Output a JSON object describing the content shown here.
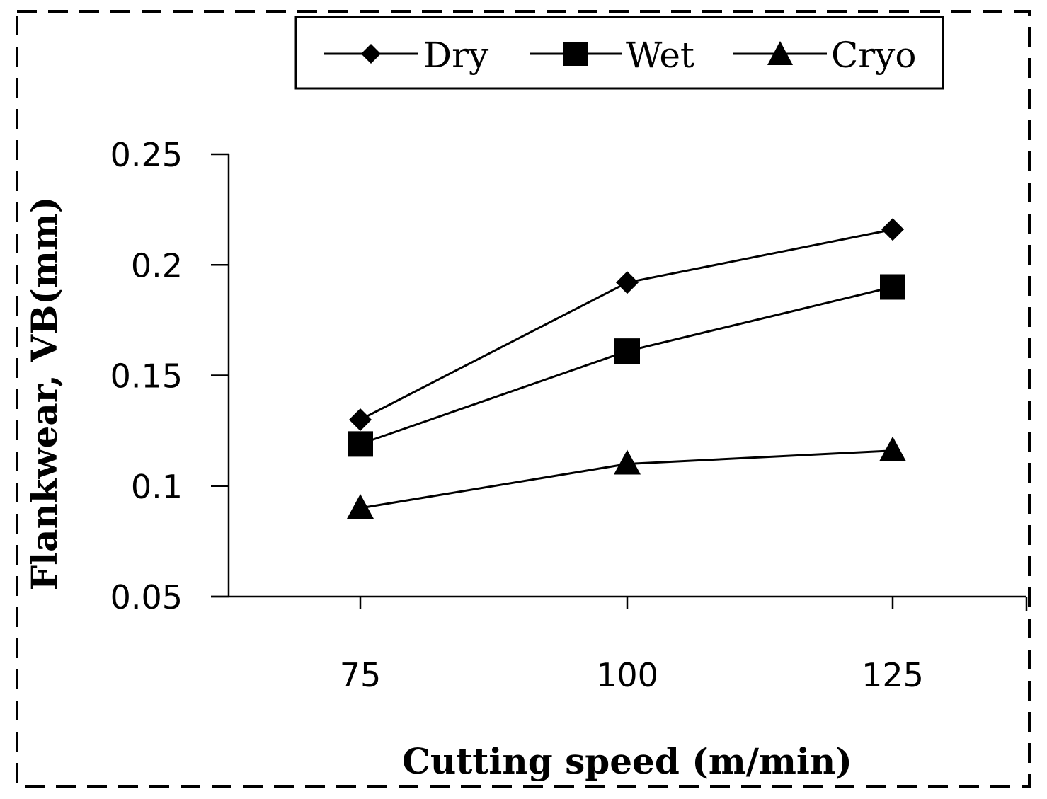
{
  "chart_data": {
    "type": "line",
    "title": "",
    "xlabel": "Cutting speed (m/min)",
    "ylabel": "Flankwear, VB(mm)",
    "categories": [
      "75",
      "100",
      "125"
    ],
    "x": [
      75,
      100,
      125
    ],
    "ylim": [
      0.05,
      0.25
    ],
    "yticks": [
      0.05,
      0.1,
      0.15,
      0.2,
      0.25
    ],
    "ytick_labels": [
      "0.05",
      "0.1",
      "0.15",
      "0.2",
      "0.25"
    ],
    "grid": false,
    "legend_position": "top",
    "series": [
      {
        "name": "Dry",
        "marker": "diamond",
        "values": [
          0.13,
          0.192,
          0.216
        ]
      },
      {
        "name": "Wet",
        "marker": "square",
        "values": [
          0.119,
          0.161,
          0.19
        ]
      },
      {
        "name": "Cryo",
        "marker": "triangle",
        "values": [
          0.09,
          0.11,
          0.116
        ]
      }
    ],
    "colors": {
      "line": "#000000",
      "marker": "#000000",
      "frame": "#000000"
    }
  }
}
